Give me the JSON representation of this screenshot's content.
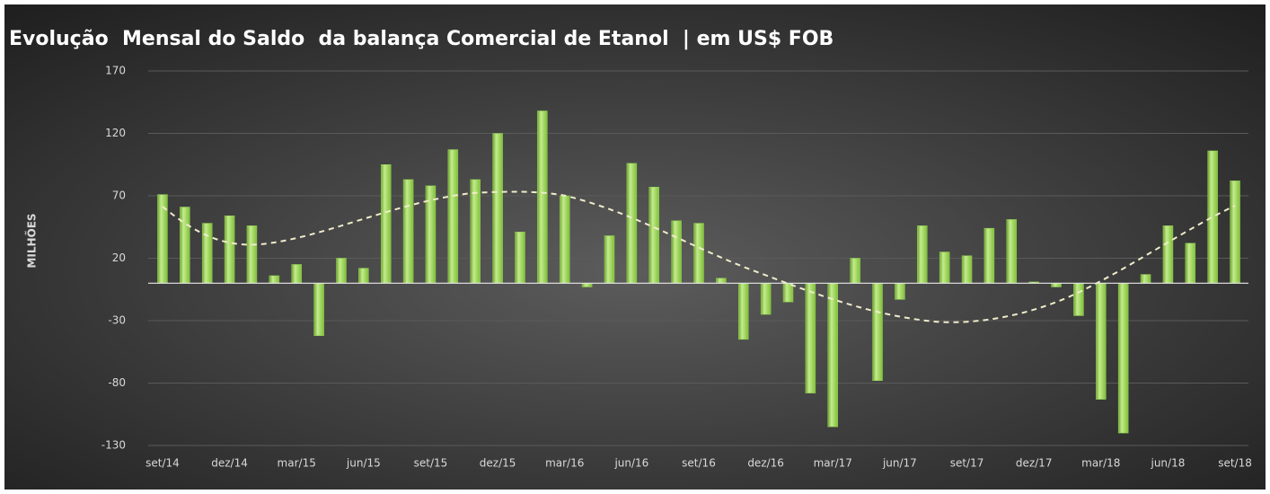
{
  "chart_data": {
    "type": "bar",
    "title": "Evolução  Mensal do Saldo  da balança Comercial de Etanol  | em US$ FOB",
    "y_label": "MILHÕES",
    "categories": [
      "set/14",
      null,
      null,
      "dez/14",
      null,
      null,
      "mar/15",
      null,
      null,
      "jun/15",
      null,
      null,
      "set/15",
      null,
      null,
      "dez/15",
      null,
      null,
      "mar/16",
      null,
      null,
      "jun/16",
      null,
      null,
      "set/16",
      null,
      null,
      "dez/16",
      null,
      null,
      "mar/17",
      null,
      null,
      "jun/17",
      null,
      null,
      "set/17",
      null,
      null,
      "dez/17",
      null,
      null,
      "mar/18",
      null,
      null,
      "jun/18",
      null,
      null,
      "set/18"
    ],
    "values": [
      71,
      61,
      48,
      54,
      46,
      6,
      15,
      -42,
      20,
      12,
      95,
      83,
      78,
      107,
      83,
      120,
      41,
      138,
      70,
      -3,
      38,
      96,
      77,
      50,
      48,
      4,
      -45,
      -25,
      -15,
      -88,
      -115,
      20,
      -78,
      -13,
      46,
      25,
      22,
      44,
      51,
      1,
      -3,
      -26,
      -93,
      -120,
      7,
      46,
      32,
      106,
      82
    ],
    "color": "#92d050",
    "ylim": [
      -130,
      170
    ],
    "yticks": [
      -130,
      -80,
      -30,
      20,
      70,
      120,
      170
    ],
    "grid": true
  }
}
